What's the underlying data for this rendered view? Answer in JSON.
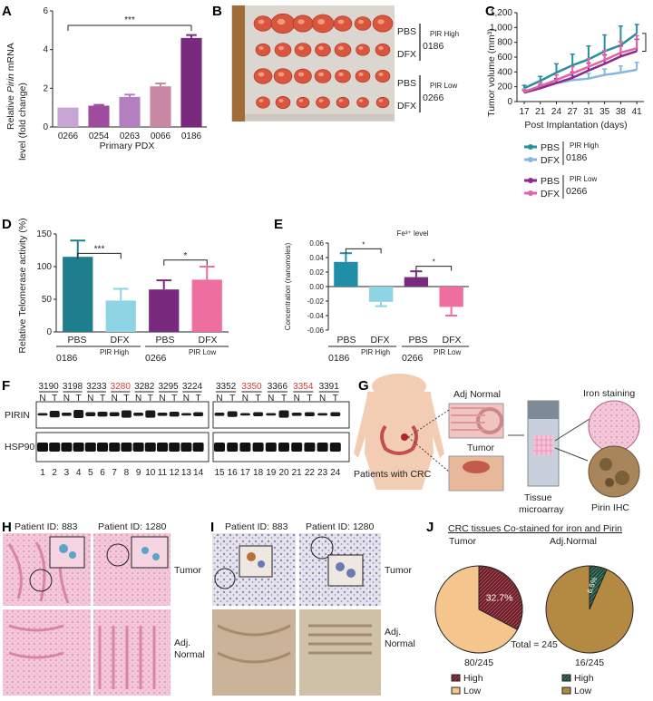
{
  "panels": {
    "A": "A",
    "B": "B",
    "C": "C",
    "D": "D",
    "E": "E",
    "F": "F",
    "G": "G",
    "H": "H",
    "I": "I",
    "J": "J"
  },
  "chart_data": [
    {
      "id": "A",
      "type": "bar",
      "categories": [
        "0266",
        "0254",
        "0263",
        "0066",
        "0186"
      ],
      "values": [
        1.0,
        1.1,
        1.55,
        2.1,
        4.6
      ],
      "errors": [
        0,
        0.04,
        0.12,
        0.15,
        0.15
      ],
      "colors": [
        "#c7a6d6",
        "#a04c9e",
        "#b37fbf",
        "#c888a4",
        "#7a2a7e"
      ],
      "xlabel": "Primary PDX",
      "ylabel_parts": [
        "Relative ",
        "Pirin",
        " mRNA"
      ],
      "ylabel_line2": "level (fold change)",
      "ylim": [
        0,
        6
      ],
      "yticks": [
        "0",
        "2",
        "4",
        "6"
      ],
      "sig": "***"
    },
    {
      "id": "C",
      "type": "line",
      "x": [
        "17",
        "21",
        "24",
        "27",
        "31",
        "35",
        "38",
        "41"
      ],
      "xlabel": "Post Implantation (days)",
      "ylabel": "Tumor volume (mm³)",
      "ylim": [
        0,
        1200
      ],
      "yticks": [
        "0",
        "200",
        "400",
        "600",
        "800",
        "1,000",
        "1,200"
      ],
      "sig": "**",
      "series": [
        {
          "name": "PBS",
          "color": "#2a8f9c",
          "values": [
            180,
            280,
            390,
            490,
            570,
            680,
            760,
            920
          ],
          "err": [
            40,
            60,
            120,
            150,
            180,
            220,
            260,
            120
          ]
        },
        {
          "name": "DFX",
          "color": "#88b6e0",
          "values": [
            140,
            200,
            250,
            290,
            310,
            360,
            390,
            430
          ],
          "err": [
            30,
            40,
            50,
            60,
            70,
            80,
            90,
            100
          ]
        },
        {
          "name": "PBS",
          "color": "#8a2a8c",
          "values": [
            120,
            180,
            250,
            320,
            420,
            510,
            610,
            680
          ],
          "err": [
            30,
            40,
            60,
            80,
            100,
            120,
            140,
            160
          ]
        },
        {
          "name": "DFX",
          "color": "#e064a8",
          "values": [
            130,
            210,
            290,
            380,
            470,
            560,
            660,
            720
          ],
          "err": [
            30,
            50,
            70,
            90,
            110,
            130,
            150,
            170
          ]
        }
      ]
    },
    {
      "id": "D",
      "type": "bar",
      "categories": [
        "PBS",
        "DFX",
        "PBS",
        "DFX"
      ],
      "values": [
        115,
        48,
        65,
        80
      ],
      "errors": [
        25,
        18,
        14,
        20
      ],
      "colors": [
        "#1f7e8e",
        "#8fd4e4",
        "#7a2a7e",
        "#ee6ea0"
      ],
      "ylabel": "Relative Telomerase activity (%)",
      "ylim": [
        0,
        150
      ],
      "yticks": [
        "0",
        "50",
        "100",
        "150"
      ],
      "sigs": [
        "***",
        "*"
      ]
    },
    {
      "id": "E",
      "type": "bar",
      "title": "Fe³⁺ level",
      "categories": [
        "PBS",
        "DFX",
        "PBS",
        "DFX"
      ],
      "values": [
        0.034,
        -0.021,
        0.013,
        -0.028
      ],
      "errors": [
        0.012,
        0.006,
        0.008,
        0.012
      ],
      "colors": [
        "#1f8ea6",
        "#8fd4e4",
        "#7a2a7e",
        "#ee6ea0"
      ],
      "ylabel": "Concentration (nanomoles)",
      "ylim": [
        -0.06,
        0.06
      ],
      "yticks": [
        "0.06",
        "0.04",
        "0.02",
        "0.00",
        "-0.02",
        "-0.04",
        "-0.06"
      ],
      "sigs": [
        "*",
        "*"
      ]
    },
    {
      "id": "J",
      "type": "pie",
      "title": "CRC tissues Co-stained for iron and Pirin",
      "pies": [
        {
          "name": "Tumor",
          "high": 32.7,
          "label": "32.7%",
          "count": "80/245"
        },
        {
          "name": "Adj.Normal",
          "high": 6.5,
          "label": "6.5%",
          "count": "16/245"
        }
      ],
      "total": "Total = 245",
      "legend": [
        "High",
        "Low"
      ]
    }
  ],
  "groups": {
    "pbs": "PBS",
    "dfx": "DFX",
    "pir_high": "PIR High",
    "pir_low": "PIR Low",
    "m0186": "0186",
    "m0266": "0266"
  },
  "blot": {
    "patients_left": [
      "3190",
      "3198",
      "3233",
      "3280",
      "3282",
      "3295",
      "3224"
    ],
    "patients_right": [
      "3352",
      "3350",
      "3366",
      "3354",
      "3391"
    ],
    "red_ids": [
      "3280",
      "3350",
      "3354"
    ],
    "n": "N",
    "t": "T",
    "proteins": [
      "PIRIN",
      "HSP90"
    ],
    "lanes": [
      "1",
      "2",
      "3",
      "4",
      "5",
      "6",
      "7",
      "8",
      "9",
      "10",
      "11",
      "12",
      "13",
      "14",
      "15",
      "16",
      "17",
      "18",
      "19",
      "20",
      "21",
      "22",
      "23",
      "24"
    ]
  },
  "schematic": {
    "adj_normal": "Adj Normal",
    "tumor": "Tumor",
    "patients": "Patients with CRC",
    "tissue": "Tissue",
    "microarray": "microarray",
    "iron": "Iron staining",
    "pirin": "Pirin IHC"
  },
  "histology": {
    "p883": "Patient ID: 883",
    "p1280": "Patient ID: 1280",
    "tumor": "Tumor",
    "adj": "Adj.",
    "normal": "Normal"
  }
}
